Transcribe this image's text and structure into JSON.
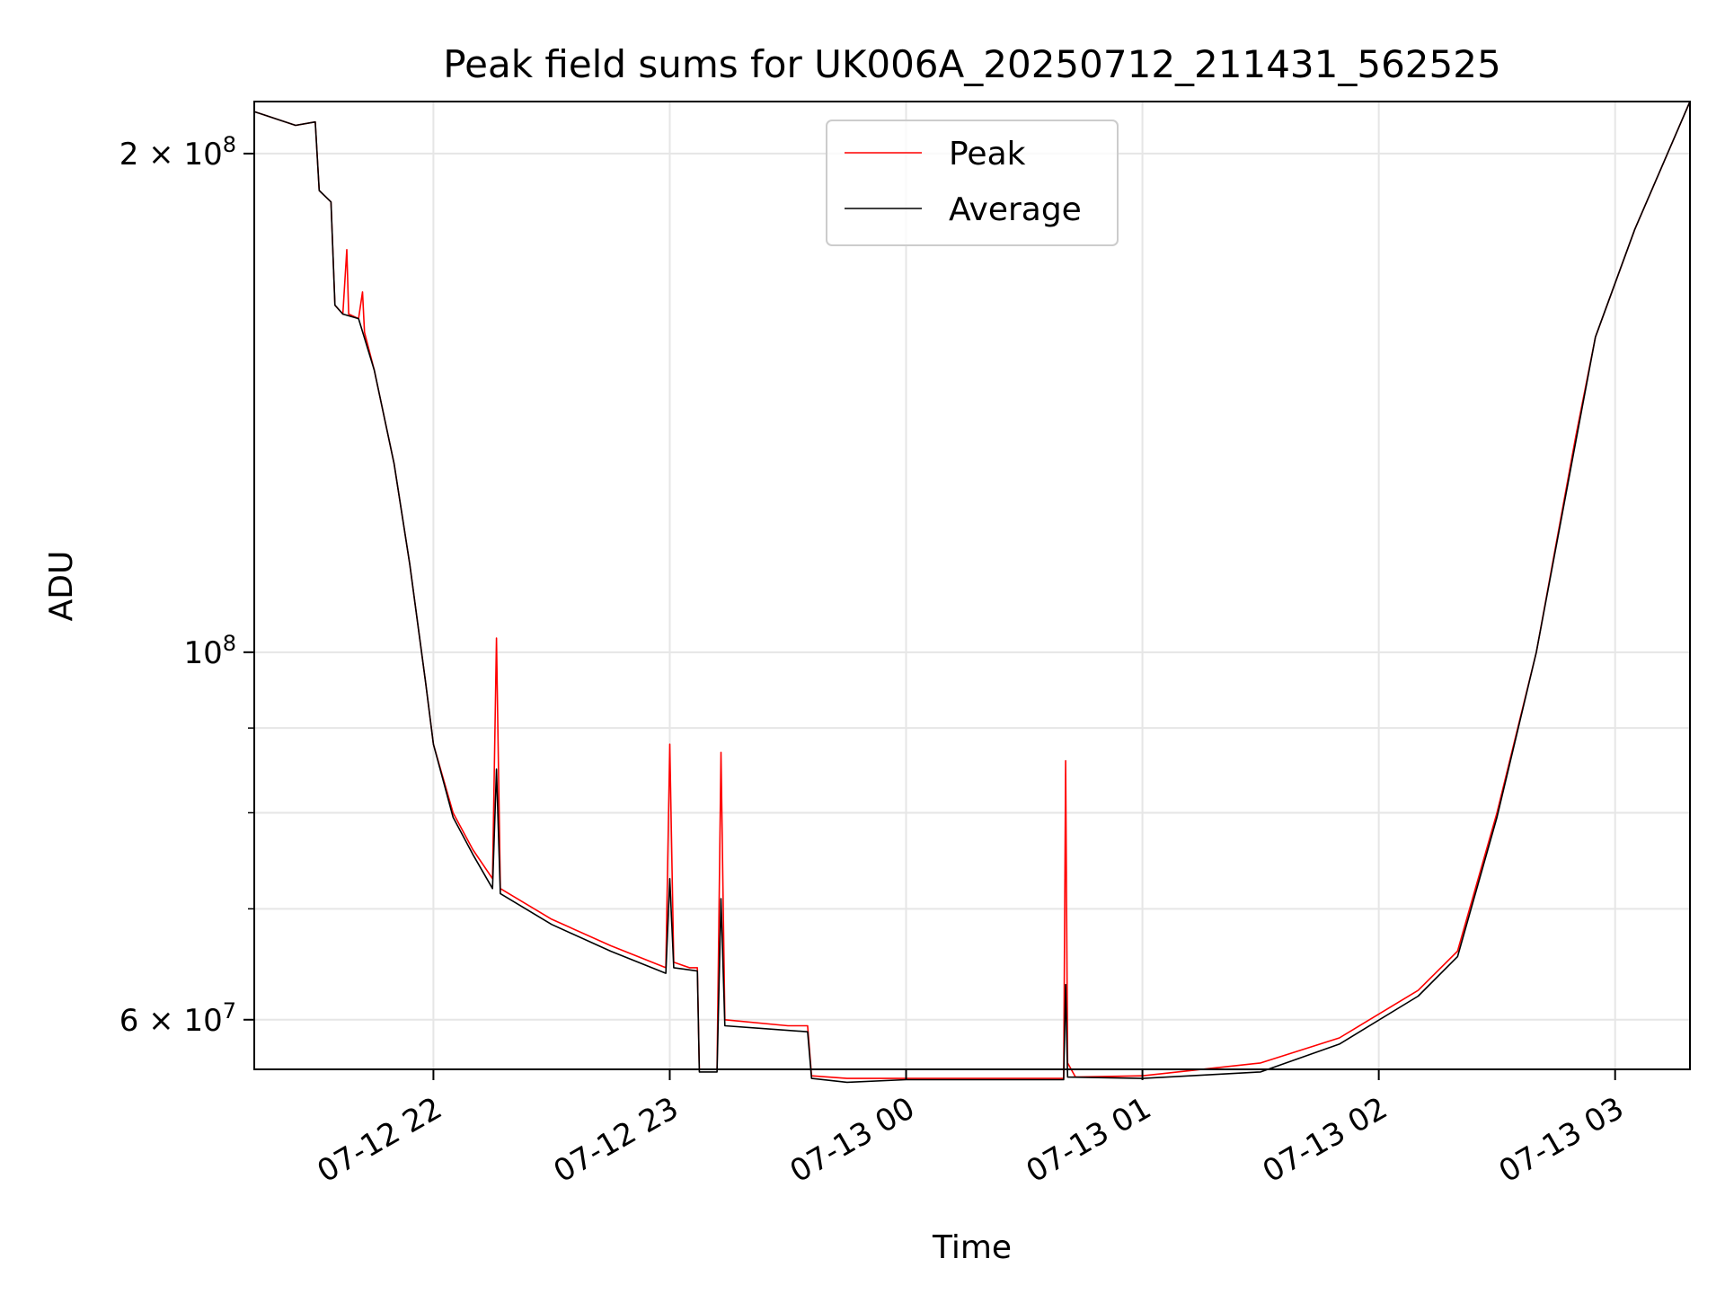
{
  "chart_data": {
    "type": "line",
    "title": "Peak field sums for UK006A_20250712_211431_562525",
    "xlabel": "Time",
    "ylabel": "ADU",
    "yscale": "log",
    "xlim": [
      "2025-07-12 21:14:31",
      "2025-07-13 03:19:00"
    ],
    "ylim": [
      56000000,
      215000000
    ],
    "grid": true,
    "legend": "upper center",
    "x_ticks": [
      {
        "t": "2025-07-12 22:00",
        "label": "07-12 22"
      },
      {
        "t": "2025-07-12 23:00",
        "label": "07-12 23"
      },
      {
        "t": "2025-07-13 00:00",
        "label": "07-13 00"
      },
      {
        "t": "2025-07-13 01:00",
        "label": "07-13 01"
      },
      {
        "t": "2025-07-13 02:00",
        "label": "07-13 02"
      },
      {
        "t": "2025-07-13 03:00",
        "label": "07-13 03"
      }
    ],
    "y_ticks": [
      {
        "value": 60000000,
        "base": "6",
        "exp": "7"
      },
      {
        "value": 100000000,
        "base": "",
        "exp": "8"
      },
      {
        "value": 200000000,
        "base": "2",
        "exp": "8"
      }
    ],
    "y_minor": [
      70000000,
      80000000,
      90000000
    ],
    "series": [
      {
        "name": "Peak",
        "color": "#ff0000",
        "points": [
          [
            "2025-07-12 21:14:31",
            212000000
          ],
          [
            "2025-07-12 21:25",
            208000000
          ],
          [
            "2025-07-12 21:30",
            209000000
          ],
          [
            "2025-07-12 21:31",
            190000000
          ],
          [
            "2025-07-12 21:34",
            187000000
          ],
          [
            "2025-07-12 21:35",
            162000000
          ],
          [
            "2025-07-12 21:37",
            160000000
          ],
          [
            "2025-07-12 21:38",
            175000000
          ],
          [
            "2025-07-12 21:38:30",
            160000000
          ],
          [
            "2025-07-12 21:41",
            159000000
          ],
          [
            "2025-07-12 21:42",
            165000000
          ],
          [
            "2025-07-12 21:42:30",
            156000000
          ],
          [
            "2025-07-12 21:45",
            148000000
          ],
          [
            "2025-07-12 21:50",
            130000000
          ],
          [
            "2025-07-12 21:54",
            113000000
          ],
          [
            "2025-07-12 21:58",
            96000000
          ],
          [
            "2025-07-12 22:00",
            88000000
          ],
          [
            "2025-07-12 22:05",
            80000000
          ],
          [
            "2025-07-12 22:10",
            76000000
          ],
          [
            "2025-07-12 22:15",
            73000000
          ],
          [
            "2025-07-12 22:16",
            102000000
          ],
          [
            "2025-07-12 22:17",
            72000000
          ],
          [
            "2025-07-12 22:30",
            69000000
          ],
          [
            "2025-07-12 22:45",
            66500000
          ],
          [
            "2025-07-12 22:59",
            64500000
          ],
          [
            "2025-07-12 23:00",
            88000000
          ],
          [
            "2025-07-12 23:01",
            65000000
          ],
          [
            "2025-07-12 23:05",
            64500000
          ],
          [
            "2025-07-12 23:07",
            64500000
          ],
          [
            "2025-07-12 23:07:30",
            56000000
          ],
          [
            "2025-07-12 23:12",
            56000000
          ],
          [
            "2025-07-12 23:13",
            87000000
          ],
          [
            "2025-07-12 23:14",
            60000000
          ],
          [
            "2025-07-12 23:30",
            59500000
          ],
          [
            "2025-07-12 23:35",
            59500000
          ],
          [
            "2025-07-12 23:36",
            55500000
          ],
          [
            "2025-07-12 23:45",
            55300000
          ],
          [
            "2025-07-13 00:00",
            55300000
          ],
          [
            "2025-07-13 00:30",
            55300000
          ],
          [
            "2025-07-13 00:40",
            55300000
          ],
          [
            "2025-07-13 00:40:30",
            86000000
          ],
          [
            "2025-07-13 00:41",
            56500000
          ],
          [
            "2025-07-13 00:43",
            55400000
          ],
          [
            "2025-07-13 01:00",
            55500000
          ],
          [
            "2025-07-13 01:30",
            56500000
          ],
          [
            "2025-07-13 01:50",
            58500000
          ],
          [
            "2025-07-13 02:10",
            62500000
          ],
          [
            "2025-07-13 02:20",
            66000000
          ],
          [
            "2025-07-13 02:30",
            80000000
          ],
          [
            "2025-07-13 02:40",
            100000000
          ],
          [
            "2025-07-13 02:50",
            135000000
          ],
          [
            "2025-07-13 02:55",
            155000000
          ],
          [
            "2025-07-13 03:05",
            180000000
          ],
          [
            "2025-07-13 03:19",
            215000000
          ]
        ]
      },
      {
        "name": "Average",
        "color": "#000000",
        "points": [
          [
            "2025-07-12 21:14:31",
            212000000
          ],
          [
            "2025-07-12 21:25",
            208000000
          ],
          [
            "2025-07-12 21:30",
            209000000
          ],
          [
            "2025-07-12 21:31",
            190000000
          ],
          [
            "2025-07-12 21:34",
            187000000
          ],
          [
            "2025-07-12 21:35",
            162000000
          ],
          [
            "2025-07-12 21:37",
            160000000
          ],
          [
            "2025-07-12 21:41",
            159000000
          ],
          [
            "2025-07-12 21:45",
            148000000
          ],
          [
            "2025-07-12 21:50",
            130000000
          ],
          [
            "2025-07-12 21:54",
            113000000
          ],
          [
            "2025-07-12 21:58",
            96000000
          ],
          [
            "2025-07-12 22:00",
            88000000
          ],
          [
            "2025-07-12 22:05",
            79500000
          ],
          [
            "2025-07-12 22:10",
            75500000
          ],
          [
            "2025-07-12 22:15",
            72000000
          ],
          [
            "2025-07-12 22:16",
            85000000
          ],
          [
            "2025-07-12 22:17",
            71500000
          ],
          [
            "2025-07-12 22:30",
            68500000
          ],
          [
            "2025-07-12 22:45",
            66000000
          ],
          [
            "2025-07-12 22:59",
            64000000
          ],
          [
            "2025-07-12 23:00",
            73000000
          ],
          [
            "2025-07-12 23:01",
            64500000
          ],
          [
            "2025-07-12 23:07",
            64200000
          ],
          [
            "2025-07-12 23:07:30",
            55800000
          ],
          [
            "2025-07-12 23:12",
            55800000
          ],
          [
            "2025-07-12 23:13",
            71000000
          ],
          [
            "2025-07-12 23:14",
            59500000
          ],
          [
            "2025-07-12 23:35",
            59000000
          ],
          [
            "2025-07-12 23:36",
            55300000
          ],
          [
            "2025-07-12 23:45",
            55000000
          ],
          [
            "2025-07-13 00:00",
            55200000
          ],
          [
            "2025-07-13 00:40",
            55200000
          ],
          [
            "2025-07-13 00:40:30",
            63000000
          ],
          [
            "2025-07-13 00:41",
            55400000
          ],
          [
            "2025-07-13 01:00",
            55300000
          ],
          [
            "2025-07-13 01:30",
            55800000
          ],
          [
            "2025-07-13 01:50",
            58000000
          ],
          [
            "2025-07-13 02:10",
            62000000
          ],
          [
            "2025-07-13 02:20",
            65500000
          ],
          [
            "2025-07-13 02:30",
            79500000
          ],
          [
            "2025-07-13 02:40",
            100000000
          ],
          [
            "2025-07-13 02:50",
            134000000
          ],
          [
            "2025-07-13 02:55",
            155000000
          ],
          [
            "2025-07-13 03:05",
            180000000
          ],
          [
            "2025-07-13 03:19",
            215000000
          ]
        ]
      }
    ]
  }
}
